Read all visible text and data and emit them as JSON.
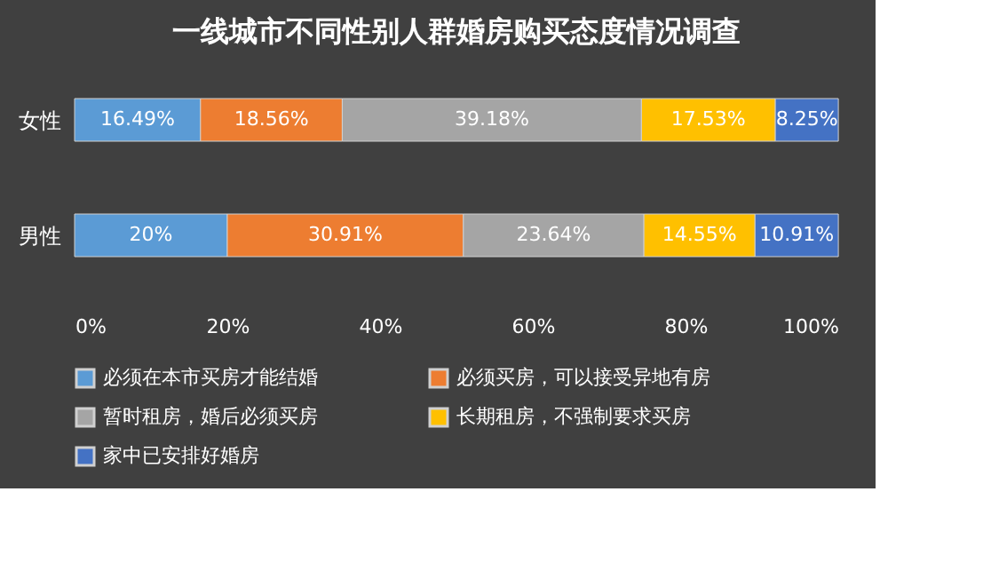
{
  "chart_data": {
    "type": "bar",
    "orientation": "horizontal",
    "stacked": true,
    "title": "一线城市不同性别人群婚房购买态度情况调查",
    "categories": [
      "女性",
      "男性"
    ],
    "series": [
      {
        "name": "必须在本市买房才能结婚",
        "color": "#5b9bd5",
        "values": [
          16.49,
          20
        ],
        "value_labels": [
          "16.49%",
          "20%"
        ]
      },
      {
        "name": "必须买房，可以接受异地有房",
        "color": "#ed7d31",
        "values": [
          18.56,
          30.91
        ],
        "value_labels": [
          "18.56%",
          "30.91%"
        ]
      },
      {
        "name": "暂时租房，婚后必须买房",
        "color": "#a5a5a5",
        "values": [
          39.18,
          23.64
        ],
        "value_labels": [
          "39.18%",
          "23.64%"
        ]
      },
      {
        "name": "长期租房，不强制要求买房",
        "color": "#ffc000",
        "values": [
          17.53,
          14.55
        ],
        "value_labels": [
          "17.53%",
          "14.55%"
        ]
      },
      {
        "name": "家中已安排好婚房",
        "color": "#4472c4",
        "values": [
          8.25,
          10.91
        ],
        "value_labels": [
          "8.25%",
          "10.91%"
        ]
      }
    ],
    "xlim": [
      0,
      100
    ],
    "xticks": [
      {
        "value": 0,
        "label": "0%"
      },
      {
        "value": 20,
        "label": "20%"
      },
      {
        "value": 40,
        "label": "40%"
      },
      {
        "value": 60,
        "label": "60%"
      },
      {
        "value": 80,
        "label": "80%"
      },
      {
        "value": 100,
        "label": "100%"
      }
    ],
    "grid": false,
    "legend": "bottom"
  }
}
